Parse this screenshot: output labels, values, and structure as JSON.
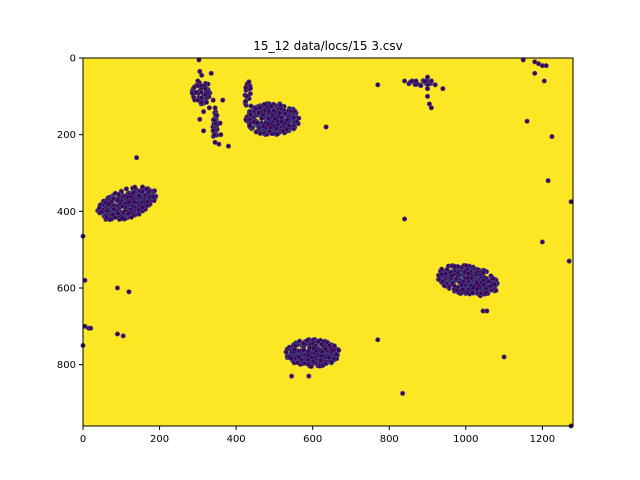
{
  "chart_data": {
    "type": "scatter",
    "title": "15_12 data/locs/15 3.csv",
    "xlabel": "",
    "ylabel": "",
    "xlim": [
      0,
      1280
    ],
    "ylim": [
      960,
      0
    ],
    "y_axis_inverted": true,
    "grid": false,
    "background_color": "#fde725",
    "point_color": "#440154",
    "point_edge_color": "#3b528b",
    "x_ticks": [
      0,
      200,
      400,
      600,
      800,
      1000,
      1200
    ],
    "y_ticks": [
      0,
      200,
      400,
      600,
      800
    ],
    "clusters": [
      {
        "center": [
          495,
          160
        ],
        "radius": [
          70,
          42
        ],
        "count": 320
      },
      {
        "center": [
          115,
          380
        ],
        "radius": [
          82,
          38
        ],
        "tilt": -0.35,
        "count": 300
      },
      {
        "center": [
          1005,
          580
        ],
        "radius": [
          82,
          38
        ],
        "tilt": 0.2,
        "count": 300
      },
      {
        "center": [
          600,
          770
        ],
        "radius": [
          70,
          36
        ],
        "count": 250
      },
      {
        "center": [
          310,
          90
        ],
        "radius": [
          25,
          30
        ],
        "count": 50
      },
      {
        "center": [
          345,
          180
        ],
        "radius": [
          6,
          45
        ],
        "count": 30
      },
      {
        "center": [
          430,
          115
        ],
        "radius": [
          10,
          60
        ],
        "count": 20
      },
      {
        "center": [
          880,
          65
        ],
        "radius": [
          30,
          8
        ],
        "count": 20
      }
    ],
    "points": [
      [
        303,
        5
      ],
      [
        305,
        35
      ],
      [
        310,
        45
      ],
      [
        335,
        40
      ],
      [
        300,
        60
      ],
      [
        295,
        90
      ],
      [
        300,
        110
      ],
      [
        320,
        95
      ],
      [
        340,
        110
      ],
      [
        345,
        130
      ],
      [
        350,
        150
      ],
      [
        358,
        170
      ],
      [
        340,
        190
      ],
      [
        365,
        110
      ],
      [
        345,
        220
      ],
      [
        355,
        225
      ],
      [
        380,
        230
      ],
      [
        305,
        160
      ],
      [
        315,
        140
      ],
      [
        330,
        130
      ],
      [
        315,
        190
      ],
      [
        360,
        200
      ],
      [
        770,
        70
      ],
      [
        840,
        60
      ],
      [
        860,
        60
      ],
      [
        870,
        60
      ],
      [
        900,
        50
      ],
      [
        910,
        60
      ],
      [
        920,
        70
      ],
      [
        900,
        80
      ],
      [
        900,
        100
      ],
      [
        905,
        120
      ],
      [
        910,
        130
      ],
      [
        940,
        80
      ],
      [
        1150,
        5
      ],
      [
        1180,
        10
      ],
      [
        1190,
        15
      ],
      [
        1200,
        20
      ],
      [
        1210,
        20
      ],
      [
        1180,
        40
      ],
      [
        1205,
        60
      ],
      [
        1160,
        165
      ],
      [
        1225,
        205
      ],
      [
        1215,
        320
      ],
      [
        1200,
        480
      ],
      [
        1270,
        530
      ],
      [
        1275,
        375
      ],
      [
        1275,
        960
      ],
      [
        1100,
        780
      ],
      [
        840,
        420
      ],
      [
        770,
        735
      ],
      [
        835,
        875
      ],
      [
        635,
        180
      ],
      [
        140,
        260
      ],
      [
        90,
        600
      ],
      [
        120,
        610
      ],
      [
        90,
        720
      ],
      [
        105,
        725
      ],
      [
        5,
        700
      ],
      [
        15,
        705
      ],
      [
        20,
        705
      ],
      [
        0,
        750
      ],
      [
        5,
        580
      ],
      [
        0,
        465
      ],
      [
        545,
        830
      ],
      [
        590,
        830
      ],
      [
        1045,
        660
      ],
      [
        1055,
        660
      ]
    ]
  }
}
